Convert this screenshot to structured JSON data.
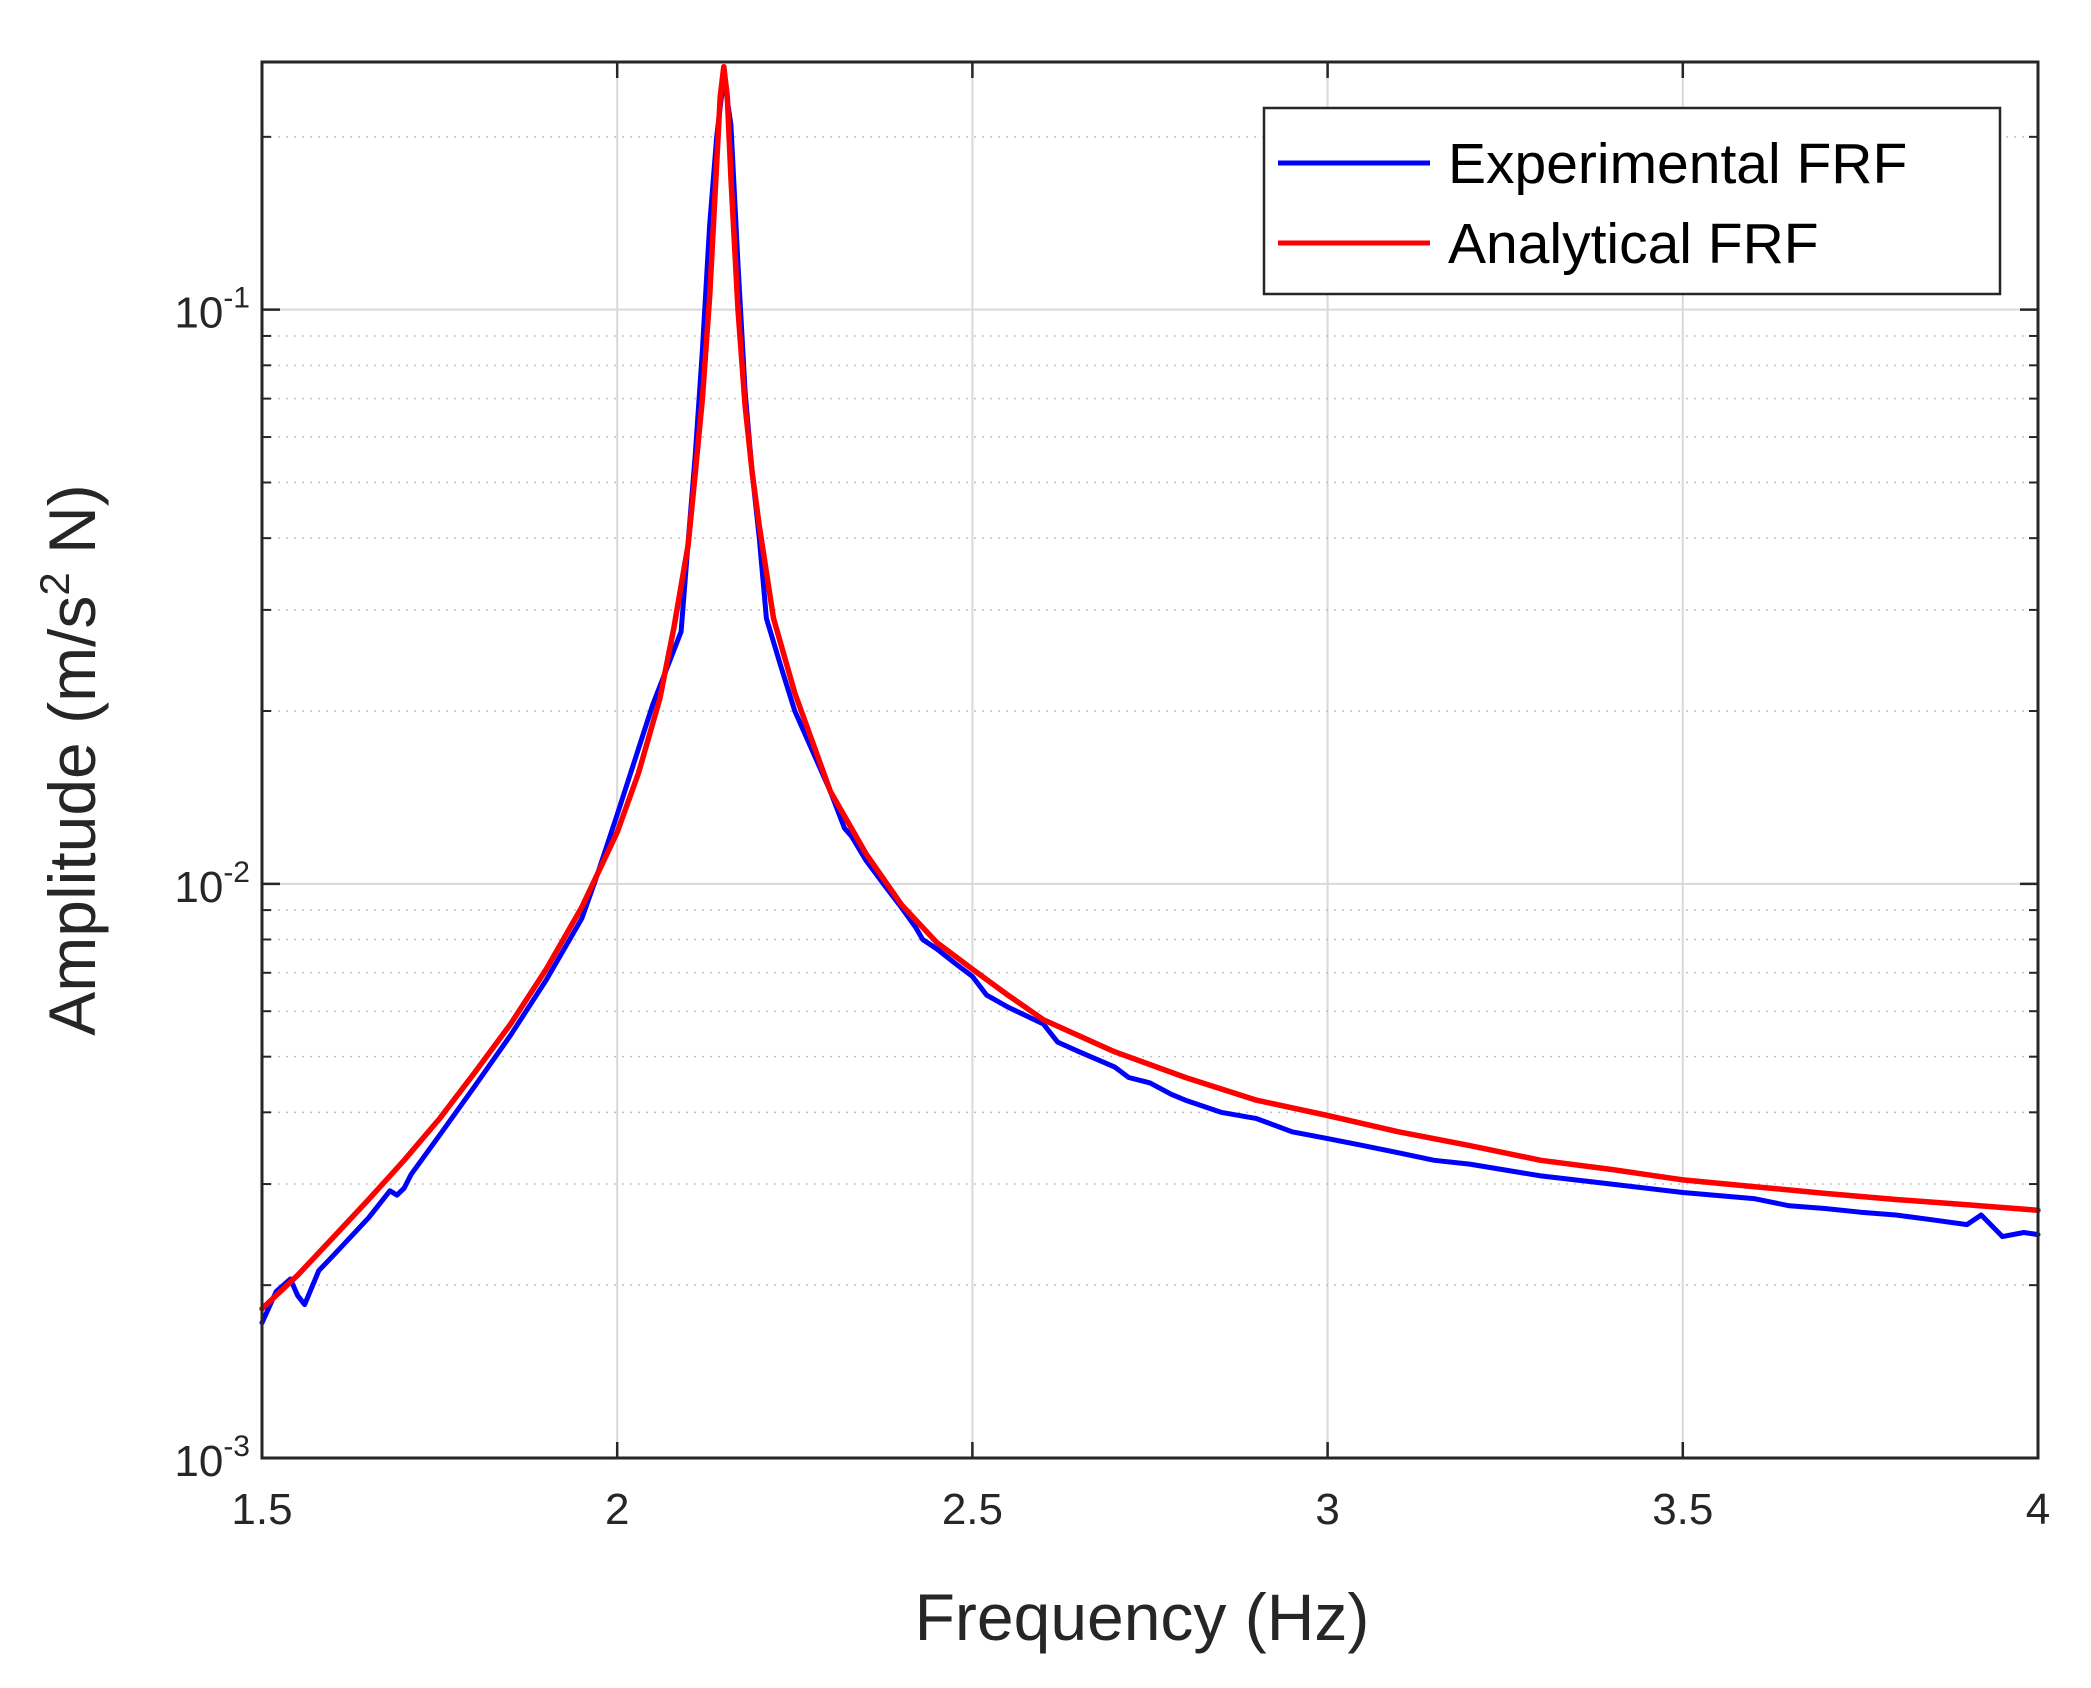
{
  "chart_data": {
    "type": "line",
    "title": "",
    "xlabel": "Frequency (Hz)",
    "ylabel": {
      "base": "Amplitude (m/s",
      "sup": "2",
      "tail": " N)"
    },
    "xlim": [
      1.5,
      4.0
    ],
    "ylim": [
      0.001,
      0.27
    ],
    "yscale": "log",
    "grid": true,
    "legend_position": "top-right",
    "x_ticks": [
      1.5,
      2.0,
      2.5,
      3.0,
      3.5,
      4.0
    ],
    "x_tick_labels": [
      "1.5",
      "2",
      "2.5",
      "3",
      "3.5",
      "4"
    ],
    "y_ticks": [
      {
        "value": 0.1,
        "base": "10",
        "exp": "-1"
      },
      {
        "value": 0.01,
        "base": "10",
        "exp": "-2"
      },
      {
        "value": 0.001,
        "base": "10",
        "exp": "-3"
      }
    ],
    "colors": {
      "axes": "#262626",
      "grid_major": "#d9d9d9",
      "grid_minor": "#c0c0c0",
      "experimental": "#0000ff",
      "analytical": "#ff0000"
    },
    "series": [
      {
        "name": "Experimental FRF",
        "color": "#0000ff",
        "x": [
          1.5,
          1.52,
          1.54,
          1.55,
          1.56,
          1.58,
          1.6,
          1.65,
          1.68,
          1.69,
          1.7,
          1.71,
          1.75,
          1.8,
          1.85,
          1.9,
          1.95,
          1.97,
          2.0,
          2.05,
          2.09,
          2.1,
          2.11,
          2.12,
          2.13,
          2.14,
          2.15,
          2.16,
          2.17,
          2.18,
          2.19,
          2.2,
          2.21,
          2.23,
          2.25,
          2.3,
          2.32,
          2.33,
          2.35,
          2.38,
          2.4,
          2.42,
          2.43,
          2.45,
          2.48,
          2.5,
          2.52,
          2.55,
          2.6,
          2.62,
          2.65,
          2.7,
          2.72,
          2.75,
          2.78,
          2.8,
          2.85,
          2.9,
          2.95,
          3.0,
          3.05,
          3.1,
          3.15,
          3.2,
          3.3,
          3.4,
          3.5,
          3.6,
          3.65,
          3.7,
          3.75,
          3.8,
          3.85,
          3.9,
          3.92,
          3.95,
          3.98,
          4.0
        ],
        "y": [
          0.00172,
          0.00195,
          0.00205,
          0.00192,
          0.00185,
          0.00212,
          0.00225,
          0.00262,
          0.00292,
          0.00287,
          0.00295,
          0.00312,
          0.00365,
          0.00445,
          0.00545,
          0.0068,
          0.0087,
          0.0102,
          0.0132,
          0.0205,
          0.0275,
          0.0395,
          0.056,
          0.085,
          0.14,
          0.2,
          0.255,
          0.21,
          0.12,
          0.072,
          0.052,
          0.04,
          0.029,
          0.024,
          0.02,
          0.0145,
          0.0125,
          0.0121,
          0.011,
          0.0098,
          0.0091,
          0.0084,
          0.008,
          0.0077,
          0.0072,
          0.0069,
          0.0064,
          0.0061,
          0.0057,
          0.0053,
          0.0051,
          0.0048,
          0.0046,
          0.0045,
          0.0043,
          0.0042,
          0.004,
          0.0039,
          0.0037,
          0.0036,
          0.0035,
          0.0034,
          0.0033,
          0.00325,
          0.0031,
          0.003,
          0.0029,
          0.00283,
          0.00275,
          0.00272,
          0.00268,
          0.00265,
          0.0026,
          0.00255,
          0.00265,
          0.00243,
          0.00247,
          0.00245
        ]
      },
      {
        "name": "Analytical FRF",
        "color": "#ff0000",
        "x": [
          1.5,
          1.55,
          1.6,
          1.65,
          1.7,
          1.75,
          1.8,
          1.85,
          1.9,
          1.95,
          2.0,
          2.03,
          2.06,
          2.08,
          2.1,
          2.11,
          2.12,
          2.13,
          2.14,
          2.145,
          2.15,
          2.155,
          2.16,
          2.17,
          2.18,
          2.19,
          2.2,
          2.22,
          2.25,
          2.3,
          2.35,
          2.4,
          2.45,
          2.5,
          2.55,
          2.6,
          2.7,
          2.8,
          2.9,
          3.0,
          3.1,
          3.2,
          3.3,
          3.4,
          3.5,
          3.6,
          3.7,
          3.8,
          3.9,
          4.0
        ],
        "y": [
          0.00182,
          0.00208,
          0.00242,
          0.00282,
          0.0033,
          0.0039,
          0.0047,
          0.0057,
          0.0071,
          0.0091,
          0.0123,
          0.0156,
          0.021,
          0.028,
          0.039,
          0.052,
          0.07,
          0.105,
          0.18,
          0.235,
          0.265,
          0.235,
          0.17,
          0.1,
          0.068,
          0.052,
          0.042,
          0.029,
          0.0215,
          0.0145,
          0.0113,
          0.0092,
          0.0079,
          0.0071,
          0.0064,
          0.0058,
          0.0051,
          0.0046,
          0.0042,
          0.00395,
          0.0037,
          0.0035,
          0.0033,
          0.00318,
          0.00305,
          0.00297,
          0.00289,
          0.00282,
          0.00276,
          0.0027
        ]
      }
    ]
  }
}
